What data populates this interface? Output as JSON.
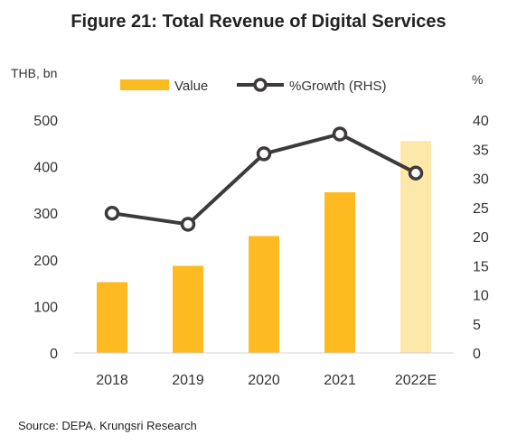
{
  "chart_data": {
    "type": "bar",
    "title": "Figure 21: Total Revenue of Digital Services",
    "y_unit_left": "THB, bn",
    "y_unit_right": "%",
    "categories": [
      "2018",
      "2019",
      "2020",
      "2021",
      "2022E"
    ],
    "series": [
      {
        "name": "Value",
        "type": "bar",
        "axis": "left",
        "values": [
          152,
          187,
          251,
          345,
          455
        ],
        "colors": [
          "#FDBA21",
          "#FDBA21",
          "#FDBA21",
          "#FDBA21",
          "#FDE7A9"
        ]
      },
      {
        "name": "%Growth (RHS)",
        "type": "line",
        "axis": "right",
        "values": [
          24.0,
          22.1,
          34.2,
          37.6,
          30.9
        ],
        "color": "#3D3A3A"
      }
    ],
    "ylim_left": [
      0,
      500
    ],
    "yticks_left": [
      "0",
      "100",
      "200",
      "300",
      "400",
      "500"
    ],
    "ylim_right": [
      0,
      40
    ],
    "yticks_right": [
      "0",
      "5",
      "10",
      "15",
      "20",
      "25",
      "30",
      "35",
      "40"
    ],
    "grid": false,
    "legend_position": "top",
    "source": "Source: DEPA. Krungsri Research"
  }
}
